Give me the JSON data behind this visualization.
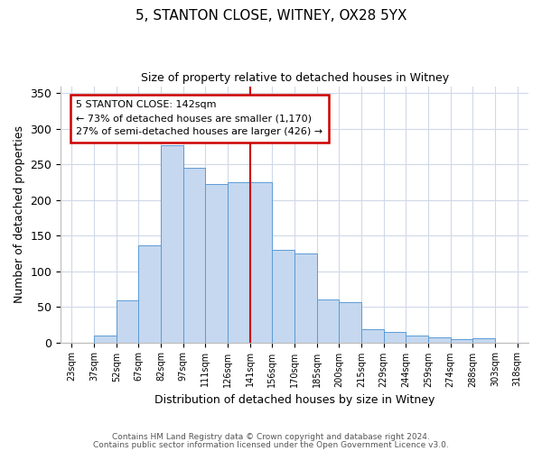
{
  "title": "5, STANTON CLOSE, WITNEY, OX28 5YX",
  "subtitle": "Size of property relative to detached houses in Witney",
  "xlabel": "Distribution of detached houses by size in Witney",
  "ylabel": "Number of detached properties",
  "bar_values": [
    0,
    10,
    59,
    136,
    277,
    245,
    222,
    225,
    225,
    130,
    125,
    60,
    57,
    18,
    15,
    9,
    7,
    4,
    6,
    0
  ],
  "bin_labels": [
    "23sqm",
    "37sqm",
    "52sqm",
    "67sqm",
    "82sqm",
    "97sqm",
    "111sqm",
    "126sqm",
    "141sqm",
    "156sqm",
    "170sqm",
    "185sqm",
    "200sqm",
    "215sqm",
    "229sqm",
    "244sqm",
    "259sqm",
    "274sqm",
    "288sqm",
    "303sqm",
    "318sqm"
  ],
  "bar_color": "#c5d8f0",
  "bar_edge_color": "#5b9bd5",
  "vline_color": "#cc0000",
  "annotation_title": "5 STANTON CLOSE: 142sqm",
  "annotation_line1": "← 73% of detached houses are smaller (1,170)",
  "annotation_line2": "27% of semi-detached houses are larger (426) →",
  "annotation_box_color": "#cc0000",
  "ylim": [
    0,
    360
  ],
  "yticks": [
    0,
    50,
    100,
    150,
    200,
    250,
    300,
    350
  ],
  "footer1": "Contains HM Land Registry data © Crown copyright and database right 2024.",
  "footer2": "Contains public sector information licensed under the Open Government Licence v3.0.",
  "background_color": "#ffffff",
  "grid_color": "#d0d8e8",
  "figsize": [
    6.0,
    5.0
  ],
  "dpi": 100
}
